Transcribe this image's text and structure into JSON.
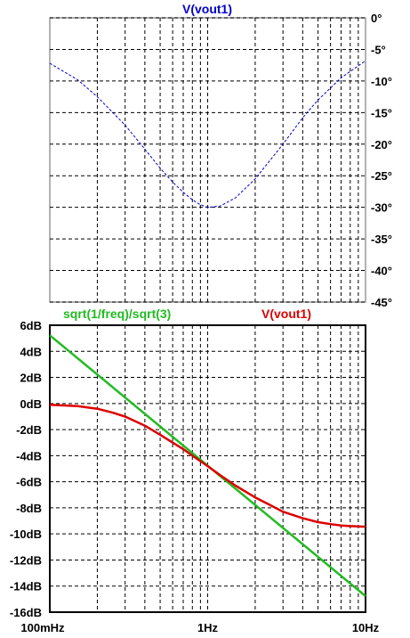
{
  "chart_data": [
    {
      "type": "line",
      "title": "V(vout1)",
      "x_scale": "log",
      "xlim": [
        "100mHz",
        "10Hz"
      ],
      "y_unit": "°",
      "ylim": [
        -45,
        0
      ],
      "y_ticks": [
        {
          "value": 0,
          "label": "0°"
        },
        {
          "value": -5,
          "label": "-5°"
        },
        {
          "value": -10,
          "label": "-10°"
        },
        {
          "value": -15,
          "label": "-15°"
        },
        {
          "value": -20,
          "label": "-20°"
        },
        {
          "value": -25,
          "label": "-25°"
        },
        {
          "value": -30,
          "label": "-30°"
        },
        {
          "value": -35,
          "label": "-35°"
        },
        {
          "value": -40,
          "label": "-40°"
        },
        {
          "value": -45,
          "label": "-45°"
        }
      ],
      "grid": true,
      "series": [
        {
          "name": "V(vout1)",
          "color": "#0000cc",
          "style": "dashed",
          "x": [
            0.1,
            0.15,
            0.2,
            0.3,
            0.4,
            0.5,
            0.6,
            0.7,
            0.8,
            0.9,
            1.0,
            1.2,
            1.5,
            2,
            3,
            4,
            5,
            7,
            10
          ],
          "y": [
            -7.2,
            -9.8,
            -12.5,
            -17.0,
            -20.8,
            -23.8,
            -26.0,
            -27.6,
            -28.8,
            -29.6,
            -30.0,
            -29.8,
            -28.5,
            -25.5,
            -20.0,
            -15.8,
            -13.0,
            -9.5,
            -6.8
          ]
        }
      ]
    },
    {
      "type": "line",
      "x_scale": "log",
      "xlim": [
        "100mHz",
        "10Hz"
      ],
      "x_ticks": [
        {
          "value": 0.1,
          "label": "100mHz"
        },
        {
          "value": 1,
          "label": "1Hz"
        },
        {
          "value": 10,
          "label": "10Hz"
        }
      ],
      "ylim": [
        -16,
        6
      ],
      "y_ticks": [
        {
          "value": 6,
          "label": "6dB"
        },
        {
          "value": 4,
          "label": "4dB"
        },
        {
          "value": 2,
          "label": "2dB"
        },
        {
          "value": 0,
          "label": "0dB"
        },
        {
          "value": -2,
          "label": "-2dB"
        },
        {
          "value": -4,
          "label": "-4dB"
        },
        {
          "value": -6,
          "label": "-6dB"
        },
        {
          "value": -8,
          "label": "-8dB"
        },
        {
          "value": -10,
          "label": "-10dB"
        },
        {
          "value": -12,
          "label": "-12dB"
        },
        {
          "value": -14,
          "label": "-14dB"
        },
        {
          "value": -16,
          "label": "-16dB"
        }
      ],
      "grid": true,
      "series": [
        {
          "name": "sqrt(1/freq)/sqrt(3)",
          "color": "#22bb22",
          "x": [
            0.1,
            10
          ],
          "y": [
            5.23,
            -14.77
          ]
        },
        {
          "name": "V(vout1)",
          "color": "#dd0000",
          "x": [
            0.1,
            0.15,
            0.2,
            0.25,
            0.3,
            0.4,
            0.5,
            0.6,
            0.7,
            0.8,
            1.0,
            1.2,
            1.5,
            2,
            2.5,
            3,
            4,
            5,
            6,
            7,
            8,
            10
          ],
          "y": [
            -0.1,
            -0.2,
            -0.4,
            -0.7,
            -1.0,
            -1.7,
            -2.4,
            -3.0,
            -3.5,
            -4.0,
            -4.8,
            -5.5,
            -6.3,
            -7.2,
            -7.8,
            -8.3,
            -8.8,
            -9.1,
            -9.25,
            -9.35,
            -9.4,
            -9.45
          ]
        }
      ]
    }
  ]
}
